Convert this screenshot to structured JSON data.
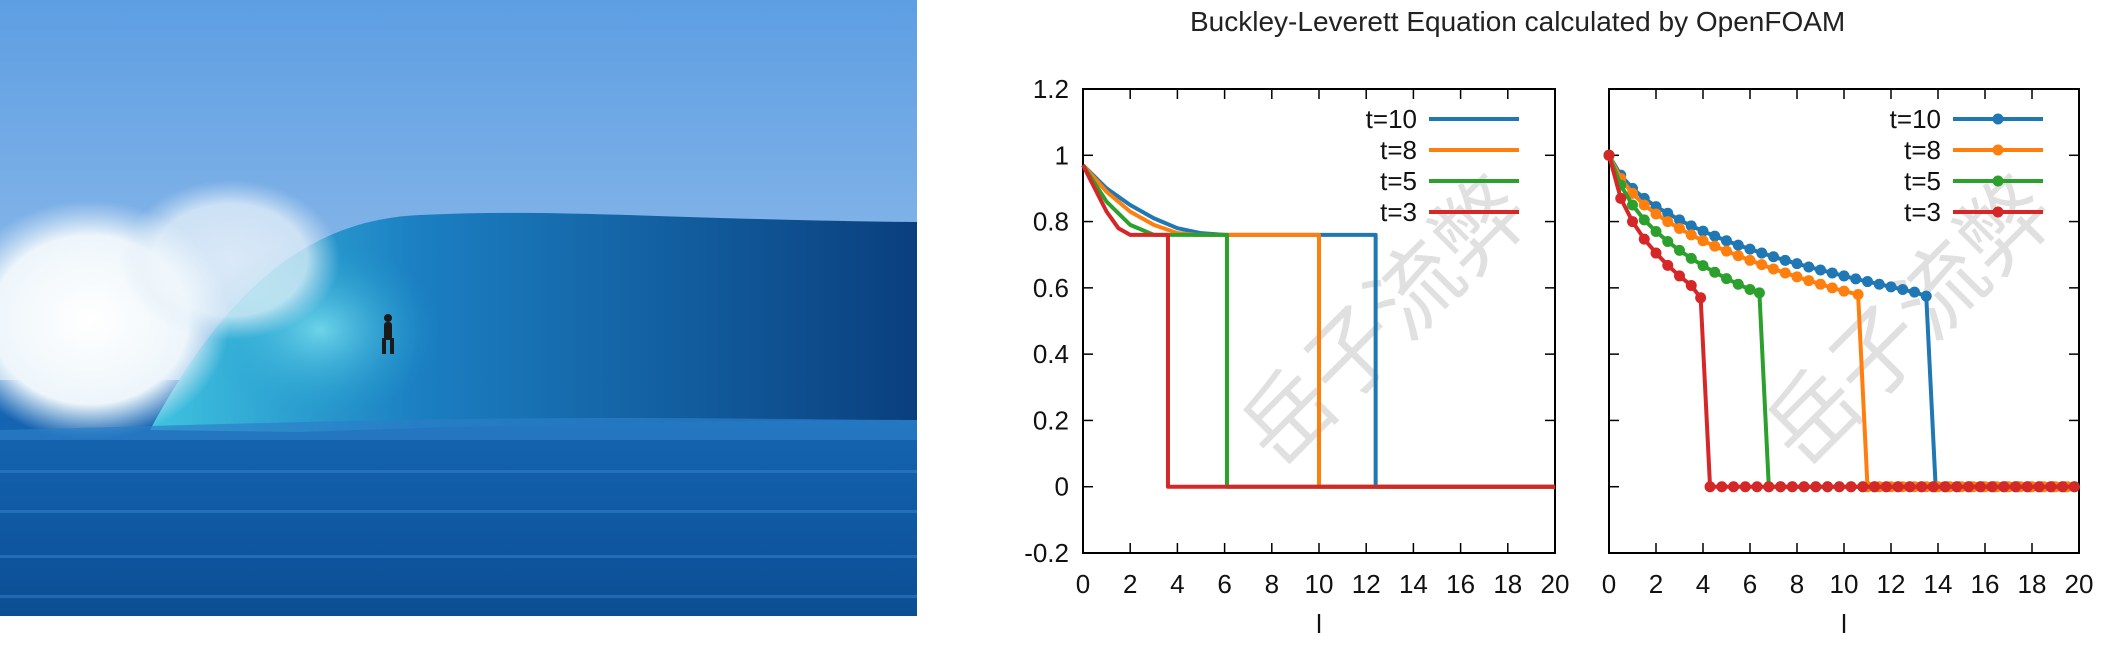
{
  "title": "Buckley-Leverett Equation calculated by OpenFOAM",
  "watermark": "岳子流弊",
  "photo": {
    "description_icon": "surfing-wave-photo"
  },
  "chart_data": [
    {
      "type": "line",
      "title": "",
      "xlabel": "l",
      "ylabel": "",
      "xlim": [
        0,
        20
      ],
      "ylim": [
        -0.2,
        1.2
      ],
      "xticks": [
        "0",
        "2",
        "4",
        "6",
        "8",
        "10",
        "12",
        "14",
        "16",
        "18",
        "20"
      ],
      "yticks": [
        "1.2",
        "1",
        "0.8",
        "0.6",
        "0.4",
        "0.2",
        "0",
        "-0.2"
      ],
      "legend_placement": "top-right",
      "grid": false,
      "series": [
        {
          "name": "t=10",
          "color": "#1f77b4",
          "front": 12.4,
          "plateau": 0.76,
          "x": [
            0,
            1,
            2,
            3,
            4,
            5,
            6,
            12.4,
            12.4,
            20
          ],
          "y": [
            0.97,
            0.9,
            0.85,
            0.81,
            0.78,
            0.765,
            0.76,
            0.76,
            0,
            0
          ]
        },
        {
          "name": "t=8",
          "color": "#ff7f0e",
          "front": 10.0,
          "plateau": 0.76,
          "x": [
            0,
            1,
            2,
            3,
            4,
            4.8,
            10.0,
            10.0,
            20
          ],
          "y": [
            0.97,
            0.89,
            0.83,
            0.79,
            0.765,
            0.76,
            0.76,
            0,
            0
          ]
        },
        {
          "name": "t=5",
          "color": "#2ca02c",
          "front": 6.1,
          "plateau": 0.76,
          "x": [
            0,
            1,
            2,
            3,
            6.1,
            6.1,
            20
          ],
          "y": [
            0.97,
            0.86,
            0.79,
            0.76,
            0.76,
            0,
            0
          ]
        },
        {
          "name": "t=3",
          "color": "#d62728",
          "front": 3.6,
          "plateau": 0.76,
          "x": [
            0,
            0.5,
            1,
            1.5,
            2,
            3.6,
            3.6,
            20
          ],
          "y": [
            0.97,
            0.9,
            0.83,
            0.78,
            0.76,
            0.76,
            0,
            0
          ]
        }
      ]
    },
    {
      "type": "line",
      "title": "",
      "xlabel": "l",
      "ylabel": "",
      "xlim": [
        0,
        20
      ],
      "ylim": [
        -0.2,
        1.2
      ],
      "xticks": [
        "0",
        "2",
        "4",
        "6",
        "8",
        "10",
        "12",
        "14",
        "16",
        "18",
        "20"
      ],
      "markers": true,
      "legend_placement": "top-right",
      "grid": false,
      "series": [
        {
          "name": "t=10",
          "color": "#1f77b4",
          "front": 13.5,
          "tail_start": 13.9,
          "x": [
            0,
            0.5,
            1,
            1.5,
            2,
            2.5,
            3,
            3.5,
            4,
            4.5,
            5,
            5.5,
            6,
            6.5,
            7,
            7.5,
            8,
            8.5,
            9,
            9.5,
            10,
            10.5,
            11,
            11.5,
            12,
            12.5,
            13,
            13.5
          ],
          "y": [
            1.0,
            0.94,
            0.9,
            0.87,
            0.845,
            0.825,
            0.805,
            0.787,
            0.771,
            0.756,
            0.742,
            0.729,
            0.717,
            0.705,
            0.694,
            0.683,
            0.673,
            0.663,
            0.654,
            0.645,
            0.636,
            0.627,
            0.619,
            0.611,
            0.603,
            0.595,
            0.587,
            0.575
          ]
        },
        {
          "name": "t=8",
          "color": "#ff7f0e",
          "front": 10.6,
          "tail_start": 11.0,
          "x": [
            0,
            0.5,
            1,
            1.5,
            2,
            2.5,
            3,
            3.5,
            4,
            4.5,
            5,
            5.5,
            6,
            6.5,
            7,
            7.5,
            8,
            8.5,
            9,
            9.5,
            10,
            10.6
          ],
          "y": [
            1.0,
            0.93,
            0.885,
            0.85,
            0.823,
            0.8,
            0.779,
            0.76,
            0.742,
            0.726,
            0.711,
            0.697,
            0.683,
            0.67,
            0.657,
            0.645,
            0.633,
            0.622,
            0.611,
            0.6,
            0.59,
            0.58
          ]
        },
        {
          "name": "t=5",
          "color": "#2ca02c",
          "front": 6.4,
          "tail_start": 6.8,
          "x": [
            0,
            0.5,
            1,
            1.5,
            2,
            2.5,
            3,
            3.5,
            4,
            4.5,
            5,
            5.5,
            6,
            6.4
          ],
          "y": [
            1.0,
            0.91,
            0.85,
            0.805,
            0.77,
            0.74,
            0.713,
            0.689,
            0.667,
            0.647,
            0.628,
            0.611,
            0.595,
            0.585
          ]
        },
        {
          "name": "t=3",
          "color": "#d62728",
          "front": 3.9,
          "tail_start": 4.3,
          "x": [
            0,
            0.5,
            1,
            1.5,
            2,
            2.5,
            3,
            3.5,
            3.9
          ],
          "y": [
            1.0,
            0.87,
            0.8,
            0.747,
            0.705,
            0.668,
            0.636,
            0.607,
            0.57
          ]
        }
      ]
    }
  ]
}
